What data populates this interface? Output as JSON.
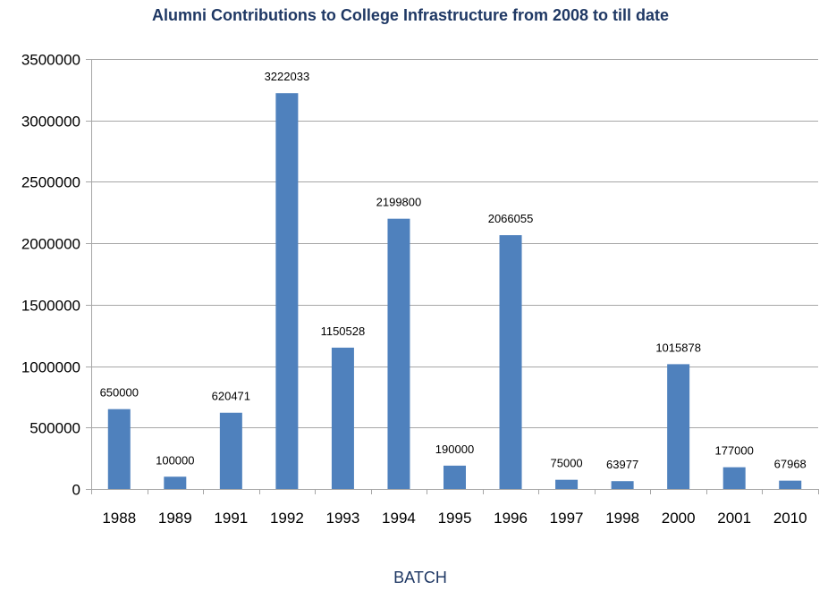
{
  "chart_data": {
    "type": "bar",
    "title": "Alumni Contributions to College Infrastructure from 2008 to till date",
    "xlabel": "BATCH",
    "ylabel": "",
    "categories": [
      "1988",
      "1989",
      "1991",
      "1992",
      "1993",
      "1994",
      "1995",
      "1996",
      "1997",
      "1998",
      "2000",
      "2001",
      "2010"
    ],
    "values": [
      650000,
      100000,
      620471,
      3222033,
      1150528,
      2199800,
      190000,
      2066055,
      75000,
      63977,
      1015878,
      177000,
      67968
    ],
    "data_labels": [
      "650000",
      "100000",
      "620471",
      "3222033",
      "1150528",
      "2199800",
      "190000",
      "2066055",
      "75000",
      "63977",
      "1015878",
      "177000",
      "67968"
    ],
    "ylim": [
      0,
      3500000
    ],
    "yticks": [
      "0",
      "500000",
      "1000000",
      "1500000",
      "2000000",
      "2500000",
      "3000000",
      "3500000"
    ],
    "grid": true,
    "legend": "none",
    "bar_color": "#4F81BD",
    "title_color": "#1F3864",
    "xlabel_color": "#1F3864",
    "gridline_color": "#A6A6A6"
  }
}
